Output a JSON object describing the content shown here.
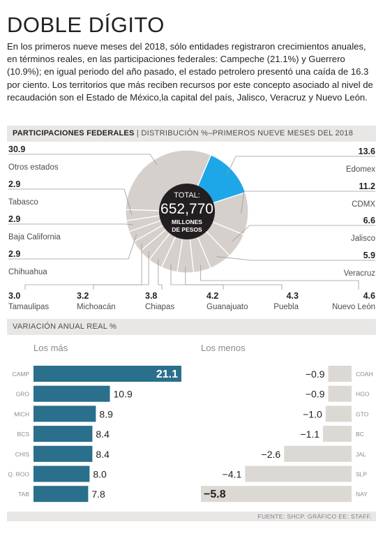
{
  "title": "DOBLE DÍGITO",
  "intro": "En los primeros nueve meses del 2018, sólo entidades registraron crecimientos anuales, en términos reales, en las participaciones federales: Campeche (21.1%) y Guerrero (10.9%); en igual periodo del año pasado, el estado petrolero presentó una caída de 16.3 por ciento. Los territorios que más reciben recursos por este concepto asociado al nivel de recaudación son el Estado de México,la capital del país, Jalisco, Veracruz y Nuevo León.",
  "section1": {
    "bold": "PARTICIPACIONES FEDERALES",
    "sep": " | ",
    "rest": "DISTRIBUCIÓN %–PRIMEROS NUEVE MESES DEL 2018"
  },
  "section2": {
    "label": "VARIACIÓN ANUAL REAL %"
  },
  "footer": "FUENTE: SHCP. GRÁFICO EE: STAFF.",
  "colors": {
    "highlight": "#1ea7e8",
    "slice": "#d5d0cb",
    "bar_dark": "#2a6f8c",
    "bar_light": "#dcd8d4",
    "center": "#231f20"
  },
  "chart_data": [
    {
      "type": "pie",
      "center_text": {
        "line1": "TOTAL:",
        "value": "652,770",
        "line3": "MILLONES",
        "line4": "DE PESOS"
      },
      "slices": [
        {
          "label": "Edomex",
          "value": 13.6,
          "highlight": true
        },
        {
          "label": "CDMX",
          "value": 11.2
        },
        {
          "label": "Jalisco",
          "value": 6.6
        },
        {
          "label": "Veracruz",
          "value": 5.9
        },
        {
          "label": "Nuevo León",
          "value": 4.6
        },
        {
          "label": "Puebla",
          "value": 4.3
        },
        {
          "label": "Guanajuato",
          "value": 4.2
        },
        {
          "label": "Chiapas",
          "value": 3.8
        },
        {
          "label": "Michoacán",
          "value": 3.2
        },
        {
          "label": "Tamaulipas",
          "value": 3.0
        },
        {
          "label": "Chihuahua",
          "value": 2.9
        },
        {
          "label": "Baja California",
          "value": 2.9
        },
        {
          "label": "Tabasco",
          "value": 2.9
        },
        {
          "label": "Otros estados",
          "value": 30.9
        }
      ]
    },
    {
      "type": "bar",
      "title": "Los más",
      "categories": [
        "CAMP",
        "GRO",
        "MICH",
        "BCS",
        "CHIS",
        "Q. ROO",
        "TAB"
      ],
      "values": [
        21.1,
        10.9,
        8.9,
        8.4,
        8.4,
        8.0,
        7.8
      ]
    },
    {
      "type": "bar",
      "title": "Los menos",
      "categories": [
        "COAH",
        "HGO",
        "GTO",
        "BC",
        "JAL",
        "SLP",
        "NAY"
      ],
      "values": [
        -0.9,
        -0.9,
        -1.0,
        -1.1,
        -2.6,
        -4.1,
        -5.8
      ]
    }
  ]
}
